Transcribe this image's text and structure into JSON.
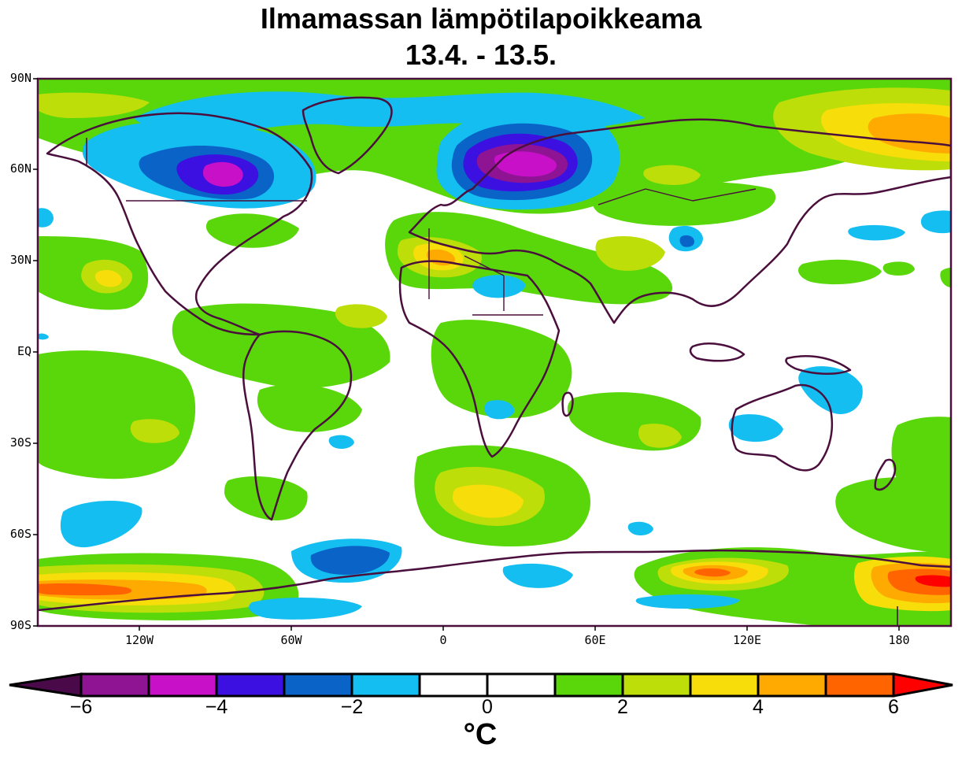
{
  "title": "Ilmamassan lämpötilapoikkeama",
  "subtitle": "13.4. - 13.5.",
  "lat_labels": [
    "90N",
    "60N",
    "30N",
    "EQ",
    "30S",
    "60S",
    "90S"
  ],
  "lon_labels": [
    "120W",
    "60W",
    "0",
    "60E",
    "120E",
    "180"
  ],
  "colorbar": {
    "unit": "°C",
    "tick_labels": [
      "−6",
      "−4",
      "−2",
      "0",
      "2",
      "4",
      "6"
    ],
    "colors": [
      "#4a0a4a",
      "#8e1494",
      "#c810c8",
      "#3c10e0",
      "#0a64c8",
      "#14bef0",
      "#ffffff",
      "#ffffff",
      "#5ad70a",
      "#bede0a",
      "#f7de0a",
      "#ffaa00",
      "#ff6400",
      "#ff0000"
    ]
  },
  "anomaly_areas": [
    {
      "name": "northern-europe-cold",
      "color": "#a614c8"
    },
    {
      "name": "hudson-bay-cold",
      "color": "#3c10e0"
    },
    {
      "name": "east-siberia-warm",
      "color": "#ffaa00"
    },
    {
      "name": "antarctic-warm",
      "color": "#ff6400"
    }
  ]
}
